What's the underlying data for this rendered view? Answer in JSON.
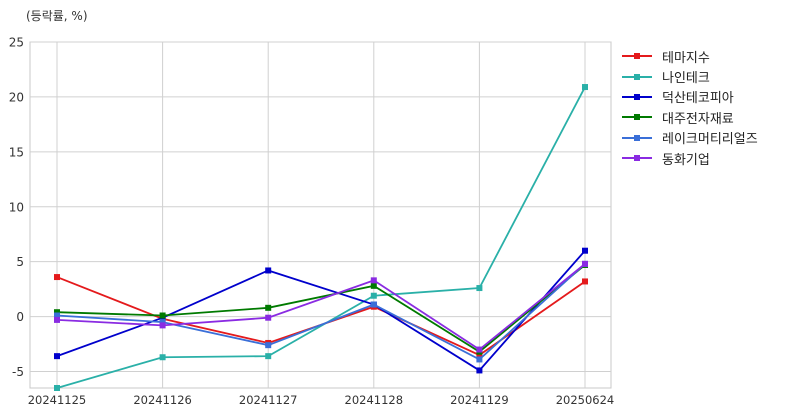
{
  "chart_data": {
    "type": "line",
    "unit_label": "(등락률, %)",
    "categories": [
      "20241125",
      "20241126",
      "20241127",
      "20241128",
      "20241129",
      "20250624"
    ],
    "ylim": [
      -6.5,
      25
    ],
    "yticks": [
      -5,
      0,
      5,
      10,
      15,
      20,
      25
    ],
    "grid": true,
    "legend_position": "right",
    "series": [
      {
        "name": "테마지수",
        "color": "#e41a1c",
        "values": [
          3.6,
          -0.2,
          -2.4,
          0.9,
          -3.5,
          3.2
        ]
      },
      {
        "name": "나인테크",
        "color": "#2ab0a8",
        "values": [
          -6.5,
          -3.7,
          -3.6,
          1.9,
          2.6,
          20.9
        ]
      },
      {
        "name": "덕산테코피아",
        "color": "#0000cc",
        "values": [
          -3.6,
          -0.1,
          4.2,
          1.1,
          -4.9,
          6.0
        ]
      },
      {
        "name": "대주전자재료",
        "color": "#007a00",
        "values": [
          0.4,
          0.1,
          0.8,
          2.8,
          -3.2,
          4.7
        ]
      },
      {
        "name": "레이크머티리얼즈",
        "color": "#3a6fd8",
        "values": [
          0.1,
          -0.5,
          -2.6,
          1.1,
          -3.9,
          4.8
        ]
      },
      {
        "name": "동화기업",
        "color": "#8a2be2",
        "values": [
          -0.3,
          -0.8,
          -0.1,
          3.3,
          -3.0,
          4.8
        ]
      }
    ]
  }
}
